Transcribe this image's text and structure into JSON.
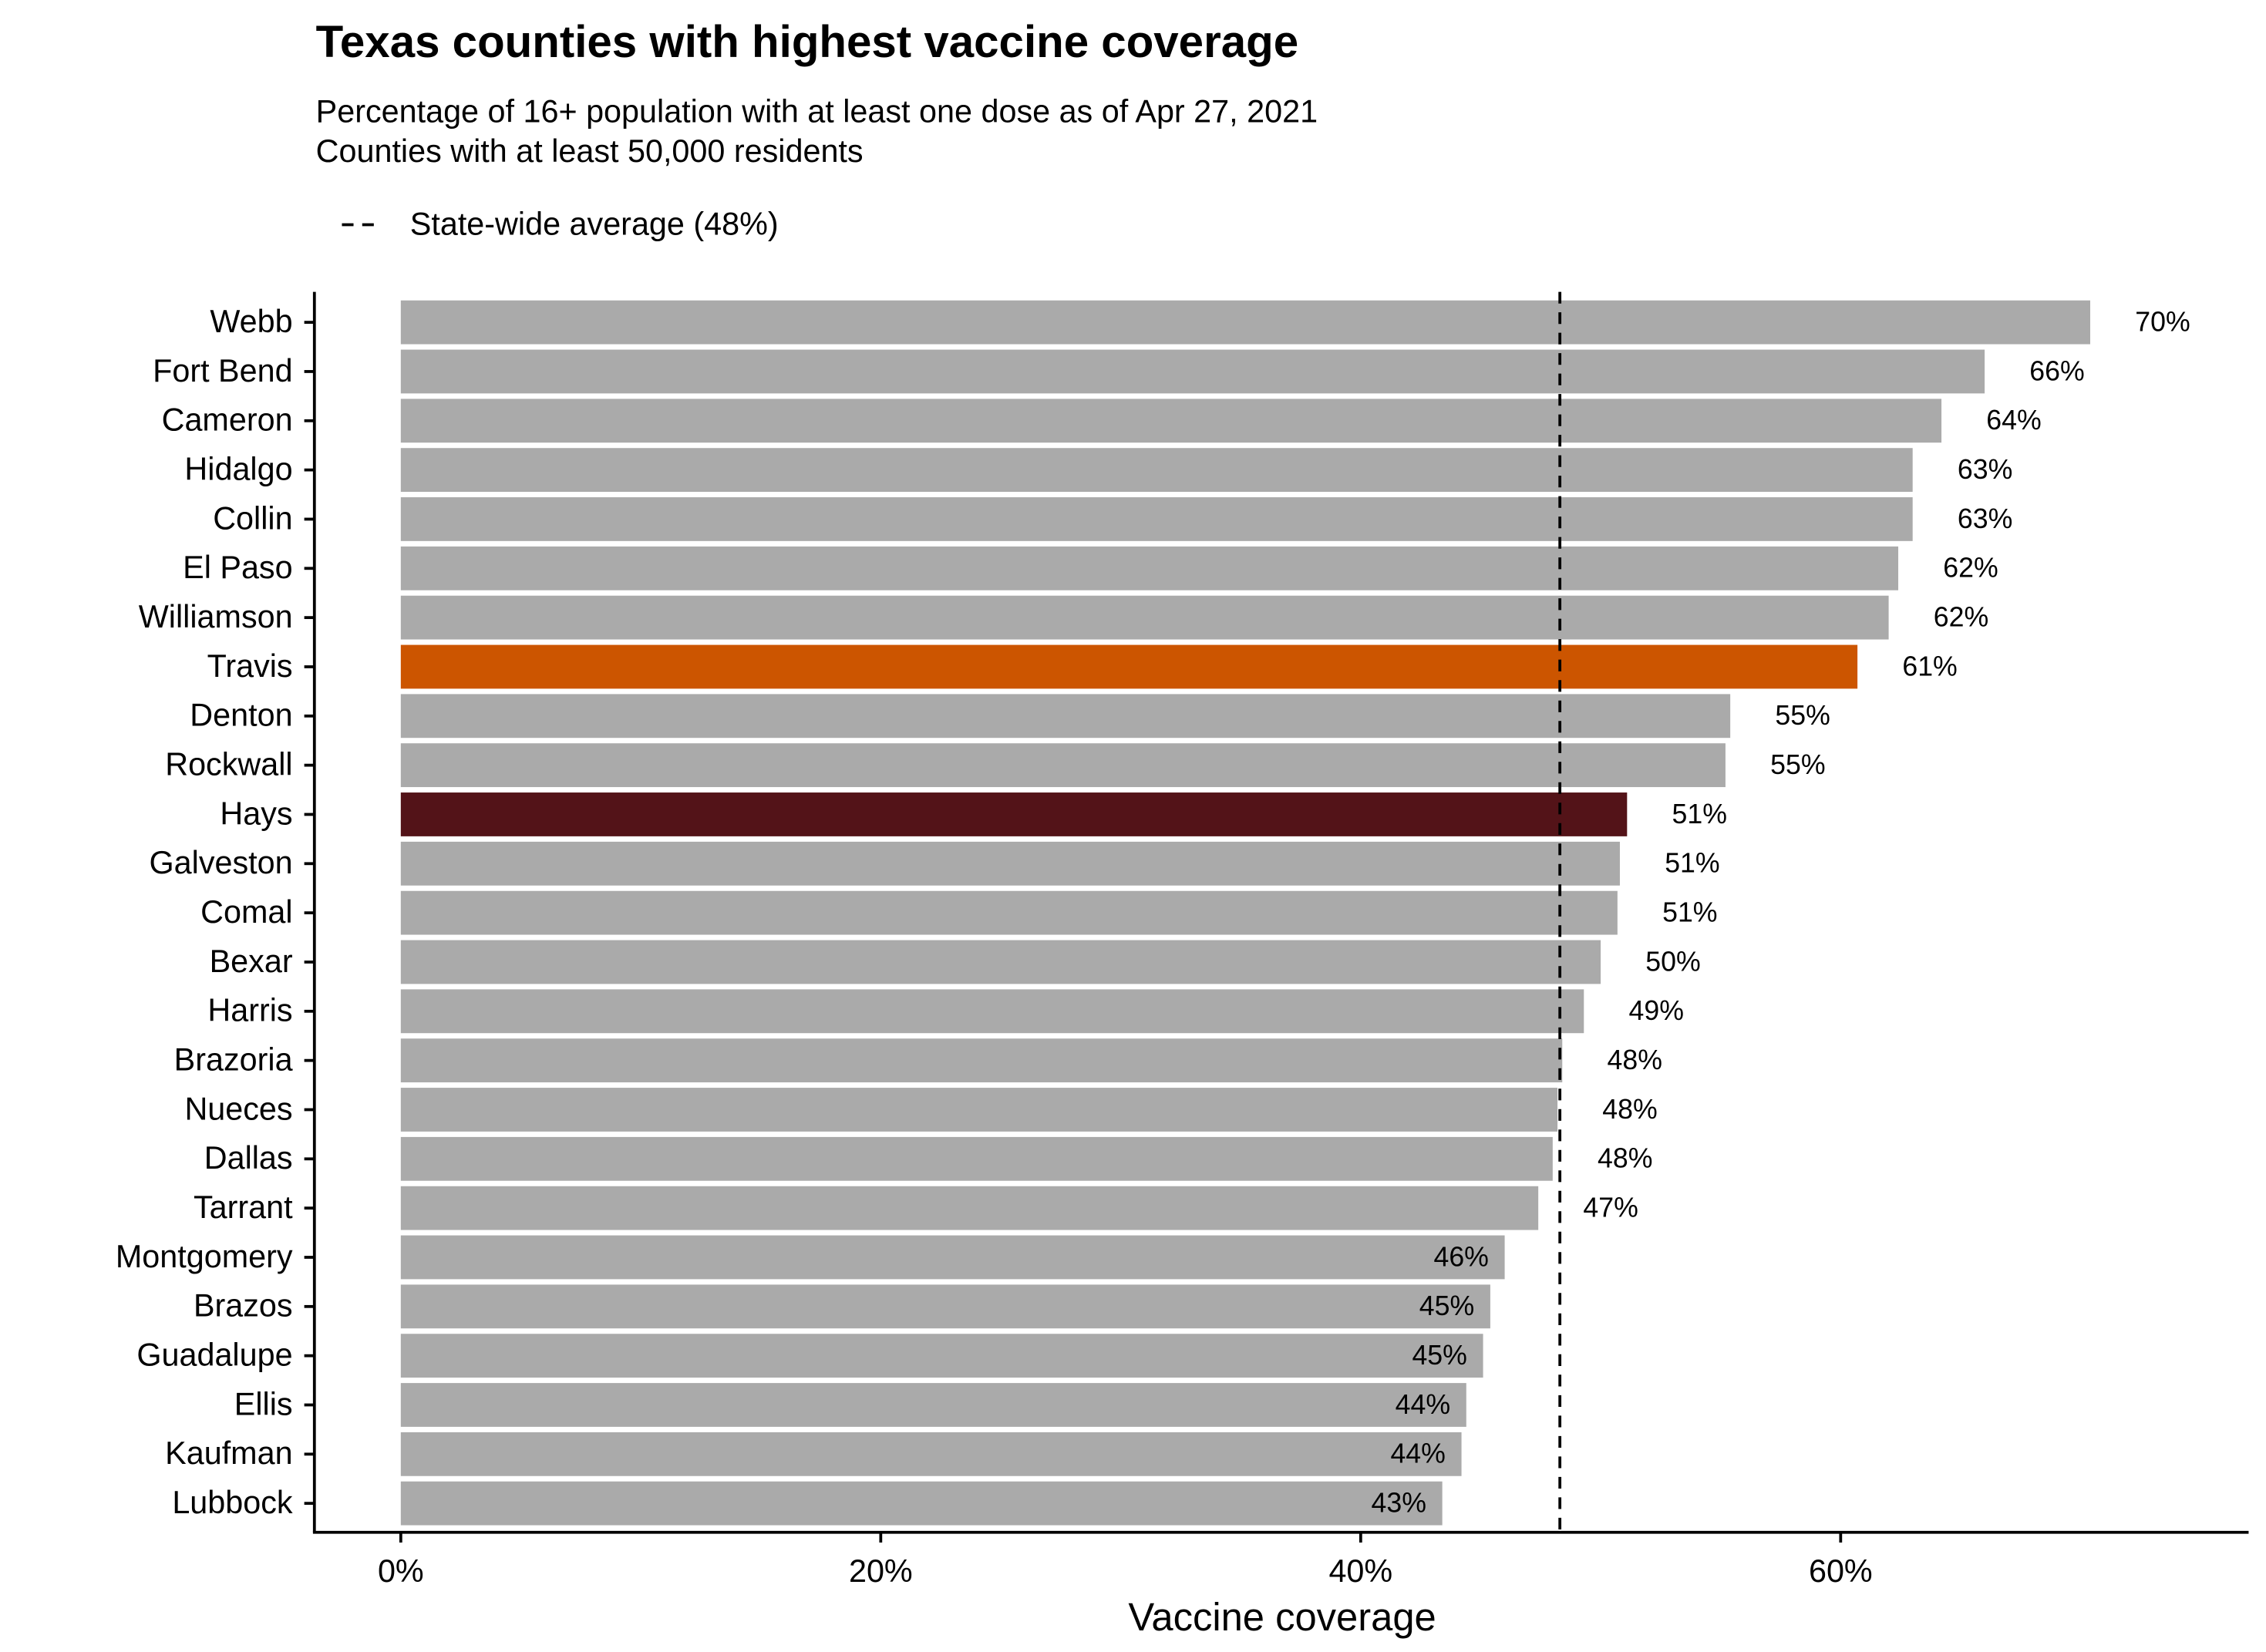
{
  "chart_data": {
    "type": "bar",
    "orientation": "horizontal",
    "title": "Texas counties with highest vaccine coverage",
    "subtitle": [
      "Percentage of 16+ population with at least one dose as of Apr 27, 2021",
      "Counties with at least 50,000 residents"
    ],
    "x_label": "Vaccine coverage",
    "categories": [
      "Webb",
      "Fort Bend",
      "Cameron",
      "Hidalgo",
      "Collin",
      "El Paso",
      "Williamson",
      "Travis",
      "Denton",
      "Rockwall",
      "Hays",
      "Galveston",
      "Comal",
      "Bexar",
      "Harris",
      "Brazoria",
      "Nueces",
      "Dallas",
      "Tarrant",
      "Montgomery",
      "Brazos",
      "Guadalupe",
      "Ellis",
      "Kaufman",
      "Lubbock"
    ],
    "values": [
      70.4,
      66.0,
      64.2,
      63.0,
      63.0,
      62.4,
      62.0,
      60.7,
      55.4,
      55.2,
      51.1,
      50.8,
      50.7,
      50.0,
      49.3,
      48.4,
      48.2,
      48.0,
      47.4,
      46.0,
      45.4,
      45.1,
      44.4,
      44.2,
      43.4
    ],
    "value_labels": [
      "70%",
      "66%",
      "64%",
      "63%",
      "63%",
      "62%",
      "62%",
      "61%",
      "55%",
      "55%",
      "51%",
      "51%",
      "51%",
      "50%",
      "49%",
      "48%",
      "48%",
      "48%",
      "47%",
      "46%",
      "45%",
      "45%",
      "44%",
      "44%",
      "43%"
    ],
    "colors": [
      "#aaaaaa",
      "#aaaaaa",
      "#aaaaaa",
      "#aaaaaa",
      "#aaaaaa",
      "#aaaaaa",
      "#aaaaaa",
      "#cc5500",
      "#aaaaaa",
      "#aaaaaa",
      "#531318",
      "#aaaaaa",
      "#aaaaaa",
      "#aaaaaa",
      "#aaaaaa",
      "#aaaaaa",
      "#aaaaaa",
      "#aaaaaa",
      "#aaaaaa",
      "#aaaaaa",
      "#aaaaaa",
      "#aaaaaa",
      "#aaaaaa",
      "#aaaaaa",
      "#aaaaaa"
    ],
    "reference_line": {
      "value": 48.3,
      "label": "State-wide average (48%)"
    },
    "xlim": [
      -3.6,
      77
    ],
    "xticks": [
      {
        "value": 0,
        "label": "0%"
      },
      {
        "value": 20,
        "label": "20%"
      },
      {
        "value": 40,
        "label": "40%"
      },
      {
        "value": 60,
        "label": "60%"
      }
    ],
    "grid": false
  }
}
